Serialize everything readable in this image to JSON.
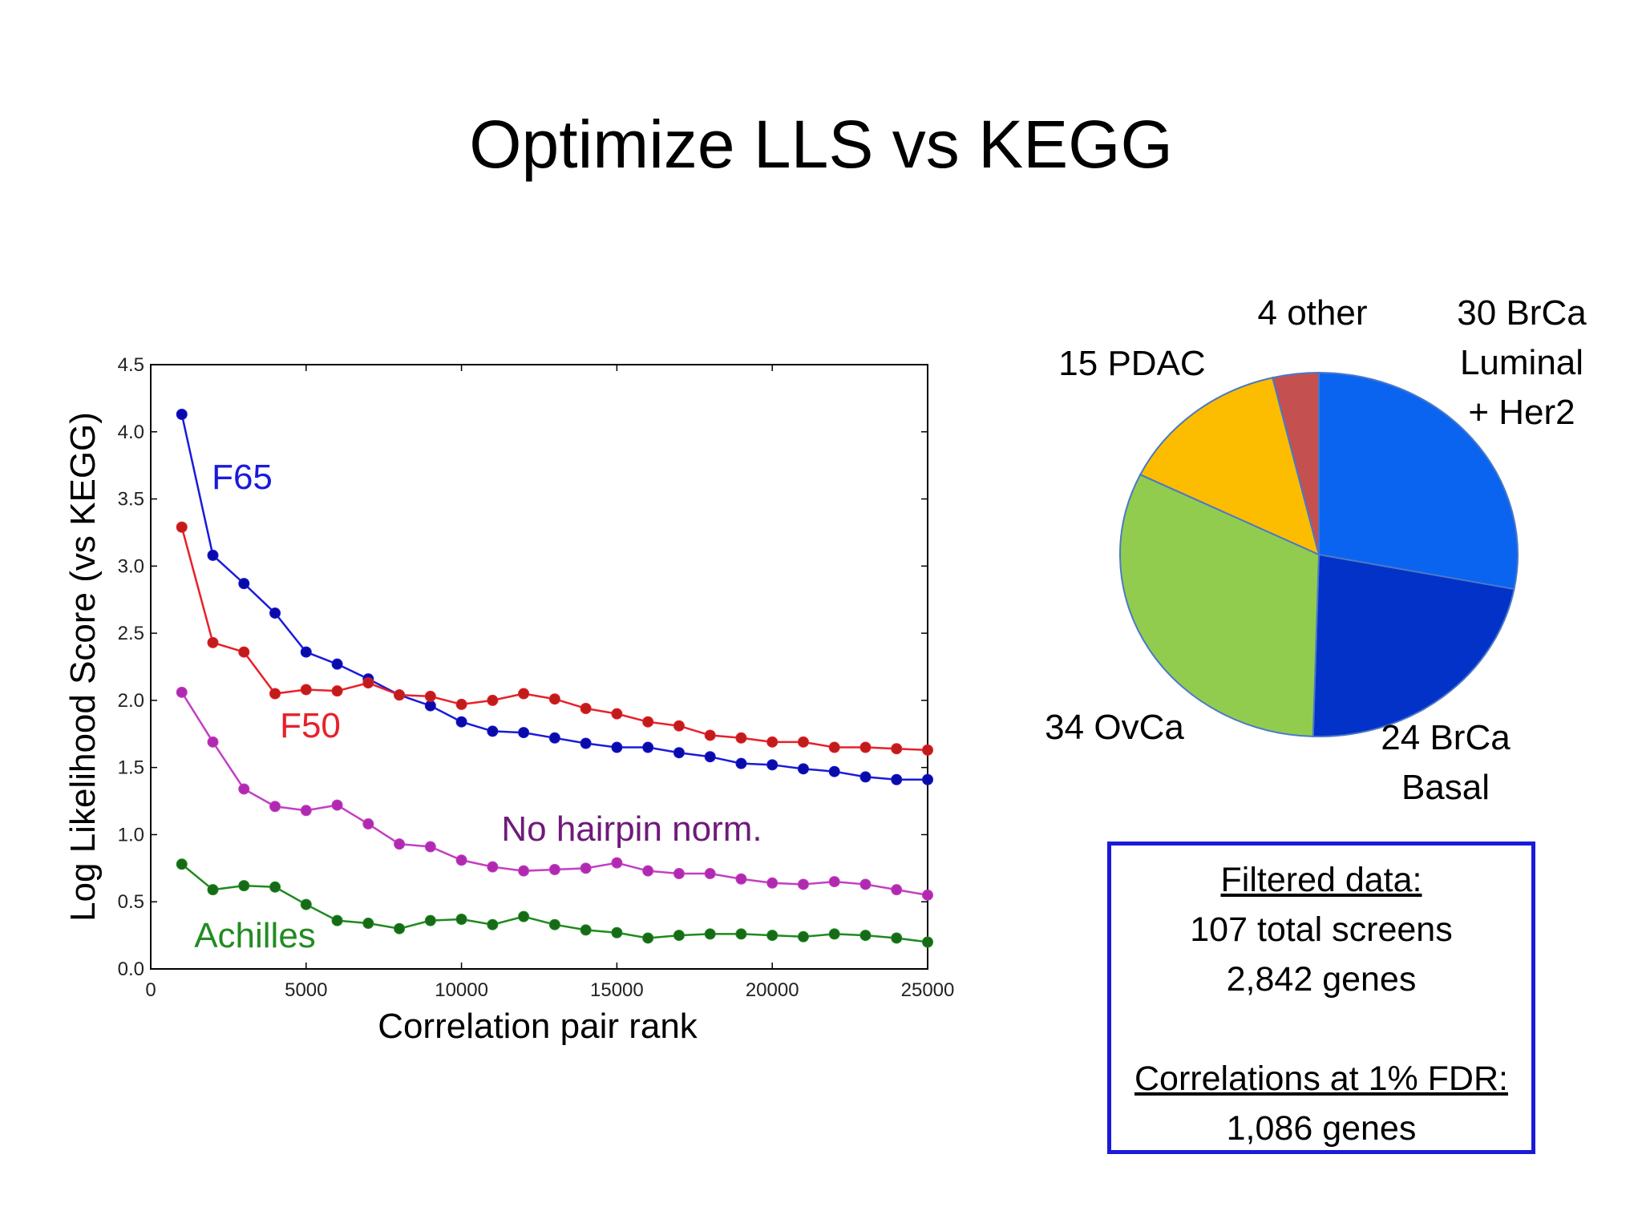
{
  "slide": {
    "title": "Optimize LLS vs KEGG"
  },
  "chart_data": [
    {
      "type": "line",
      "xlabel": "Correlation pair rank",
      "ylabel": "Log Likelihood Score (vs KEGG)",
      "xlim": [
        0,
        25000
      ],
      "ylim": [
        0,
        4.5
      ],
      "xticks": [
        "0",
        "5000",
        "10000",
        "15000",
        "20000",
        "25000"
      ],
      "yticks": [
        "0.0",
        "0.5",
        "1.0",
        "1.5",
        "2.0",
        "2.5",
        "3.0",
        "3.5",
        "4.0",
        "4.5"
      ],
      "grid": false,
      "legend": "inline labels",
      "x": [
        1000,
        2000,
        3000,
        4000,
        5000,
        6000,
        7000,
        8000,
        9000,
        10000,
        11000,
        12000,
        13000,
        14000,
        15000,
        16000,
        17000,
        18000,
        19000,
        20000,
        21000,
        22000,
        23000,
        24000,
        25000
      ],
      "series": [
        {
          "name": "F65",
          "color": "#1a1adb",
          "marker": "#0a0aa8",
          "values": [
            4.13,
            3.08,
            2.87,
            2.65,
            2.36,
            2.27,
            2.16,
            2.04,
            1.96,
            1.84,
            1.77,
            1.76,
            1.72,
            1.68,
            1.65,
            1.65,
            1.61,
            1.58,
            1.53,
            1.52,
            1.49,
            1.47,
            1.43,
            1.41,
            1.41
          ]
        },
        {
          "name": "F50",
          "color": "#e8202a",
          "marker": "#c01c1c",
          "values": [
            3.29,
            2.43,
            2.36,
            2.05,
            2.08,
            2.07,
            2.13,
            2.04,
            2.03,
            1.97,
            2.0,
            2.05,
            2.01,
            1.94,
            1.9,
            1.84,
            1.81,
            1.74,
            1.72,
            1.69,
            1.69,
            1.65,
            1.65,
            1.64,
            1.63
          ]
        },
        {
          "name": "No hairpin norm.",
          "color": "#c43ec4",
          "marker": "#b02ab0",
          "label_color": "#6f1a7a",
          "values": [
            2.06,
            1.69,
            1.34,
            1.21,
            1.18,
            1.22,
            1.08,
            0.93,
            0.91,
            0.81,
            0.76,
            0.73,
            0.74,
            0.75,
            0.79,
            0.73,
            0.71,
            0.71,
            0.67,
            0.64,
            0.63,
            0.65,
            0.63,
            0.59,
            0.55
          ]
        },
        {
          "name": "Achilles",
          "color": "#1f8a1f",
          "marker": "#176a17",
          "label_color": "#228b22",
          "values": [
            0.78,
            0.59,
            0.62,
            0.61,
            0.48,
            0.36,
            0.34,
            0.3,
            0.36,
            0.37,
            0.33,
            0.39,
            0.33,
            0.29,
            0.27,
            0.23,
            0.25,
            0.26,
            0.26,
            0.25,
            0.24,
            0.26,
            0.25,
            0.23,
            0.2
          ]
        }
      ]
    },
    {
      "type": "pie",
      "slices": [
        {
          "label": [
            "30 BrCa",
            "Luminal",
            "+ Her2"
          ],
          "value": 30,
          "color": "#0a64f0"
        },
        {
          "label": [
            "24 BrCa",
            "Basal"
          ],
          "value": 24,
          "color": "#0332c8"
        },
        {
          "label": [
            "34 OvCa"
          ],
          "value": 34,
          "color": "#92cc4e"
        },
        {
          "label": [
            "15 PDAC"
          ],
          "value": 15,
          "color": "#fcbc00"
        },
        {
          "label": [
            "4 other"
          ],
          "value": 4,
          "color": "#c45050"
        }
      ]
    }
  ],
  "info_box": {
    "heading": "Filtered data:",
    "line1": "107 total screens",
    "line2": "2,842 genes",
    "heading2": "Correlations at 1% FDR:",
    "line3": "1,086 genes",
    "border_color": "#1a1adb"
  }
}
